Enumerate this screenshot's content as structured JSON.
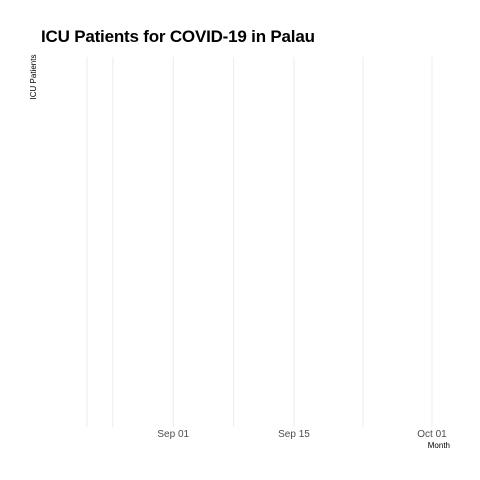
{
  "chart_data": {
    "type": "line",
    "title": "ICU Patients for COVID-19 in Palau",
    "xlabel": "Month",
    "ylabel": "ICU Patients",
    "x_ticks": [
      {
        "label": "Sep 01",
        "date": "2021-09-01"
      },
      {
        "label": "Sep 15",
        "date": "2021-09-15"
      },
      {
        "label": "Oct 01",
        "date": "2021-10-01"
      }
    ],
    "minor_gridlines": [
      "2021-08-25",
      "2021-09-08",
      "2021-09-23"
    ],
    "xlim": [
      "2021-08-22",
      "2021-10-01"
    ],
    "series": [],
    "grid": true,
    "legend": "none"
  }
}
